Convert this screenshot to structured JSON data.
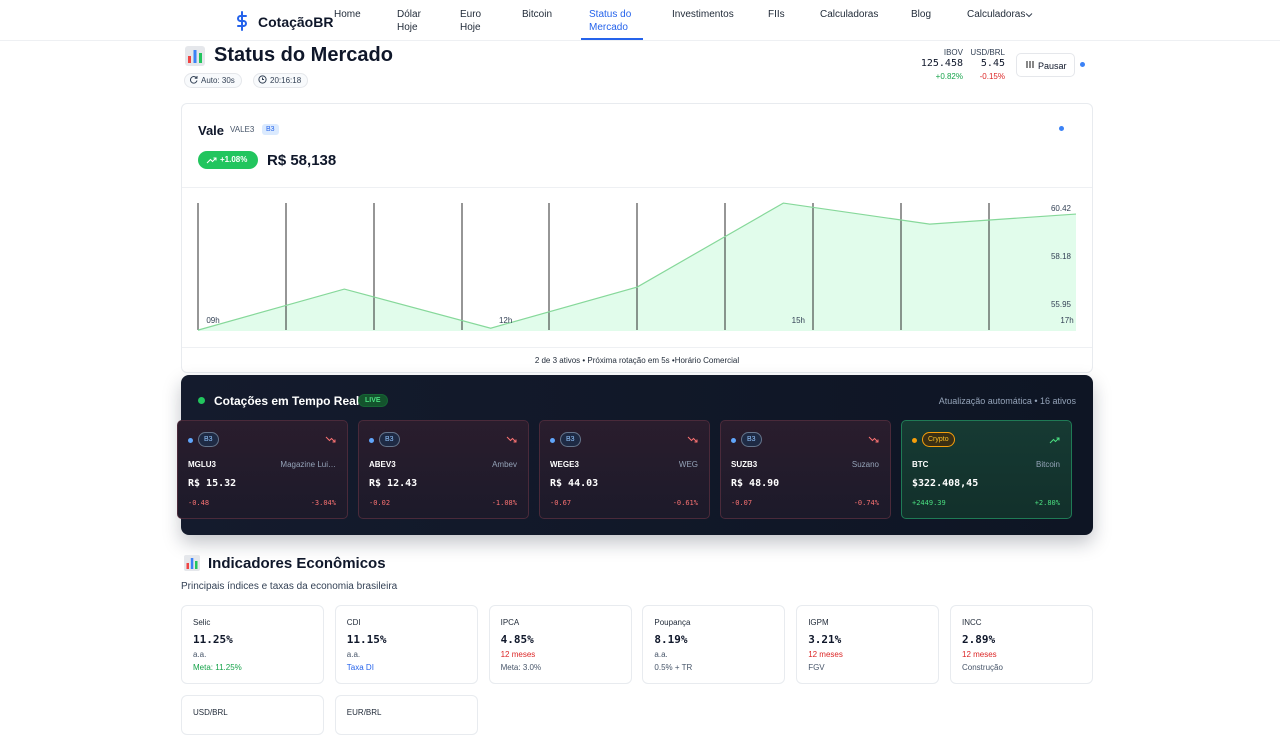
{
  "nav": {
    "brand": "CotaçãoBR",
    "items": [
      "Home",
      "Dólar Hoje",
      "Euro Hoje",
      "Bitcoin",
      "Status do Mercado",
      "Investimentos",
      "FIIs",
      "Calculadoras",
      "Blog",
      "Calculadoras"
    ]
  },
  "header": {
    "title": "Status do Mercado",
    "auto": "Auto: 30s",
    "time": "20:16:18",
    "tickers": [
      {
        "label": "IBOV",
        "value": "125.458",
        "change": "+0.82%"
      },
      {
        "label": "USD/BRL",
        "value": "5.45",
        "change": "-0.15%"
      }
    ],
    "pause": "Pausar"
  },
  "asset": {
    "name": "Vale",
    "ticker": "VALE3",
    "exchange": "B3",
    "change": "+1.08%",
    "price": "R$ 58,138",
    "footer": "2 de 3 ativos • Próxima rotação em 5s •Horário Comercial"
  },
  "price_chart": {
    "type": "area",
    "categories": [
      "09h",
      null,
      "12h",
      null,
      "15h",
      null,
      "17h"
    ],
    "values": [
      54.74,
      56.65,
      54.83,
      56.74,
      60.65,
      59.67,
      60.14
    ],
    "ylim": [
      54.7,
      60.7
    ],
    "yticks": [
      55.95,
      58.18,
      60.42
    ],
    "color": "#86d89a"
  },
  "live": {
    "title": "Cotações em Tempo Real",
    "badge": "LIVE",
    "status": "Atualização automática • 16 ativos",
    "cards": [
      {
        "exchange": "B3",
        "ticker": "MGLU3",
        "name": "Magazine Lui…",
        "price": "R$ 15.32",
        "change": "-0.48",
        "change_pct": "-3.04%"
      },
      {
        "exchange": "B3",
        "ticker": "ABEV3",
        "name": "Ambev",
        "price": "R$ 12.43",
        "change": "-0.02",
        "change_pct": "-1.08%"
      },
      {
        "exchange": "B3",
        "ticker": "WEGE3",
        "name": "WEG",
        "price": "R$ 44.03",
        "change": "-0.67",
        "change_pct": "-0.61%"
      },
      {
        "exchange": "B3",
        "ticker": "SUZB3",
        "name": "Suzano",
        "price": "R$ 48.90",
        "change": "-0.07",
        "change_pct": "-0.74%"
      },
      {
        "exchange": "Crypto",
        "ticker": "BTC",
        "name": "Bitcoin",
        "price": "$322.408,45",
        "change": "+2449.39",
        "change_pct": "+2.80%"
      }
    ]
  },
  "indicators": {
    "title": "Indicadores Econômicos",
    "subtitle": "Principais índices e taxas da economia brasileira",
    "cards": [
      {
        "label": "Selic",
        "value": "11.25%",
        "unit": "a.a.",
        "note": "Meta: 11.25%",
        "unit_color": "#475569",
        "note_color": "#16a34a"
      },
      {
        "label": "CDI",
        "value": "11.15%",
        "unit": "a.a.",
        "note": "Taxa DI",
        "unit_color": "#475569",
        "note_color": "#2563eb"
      },
      {
        "label": "IPCA",
        "value": "4.85%",
        "unit": "12 meses",
        "note": "Meta: 3.0%",
        "unit_color": "#dc2626",
        "note_color": "#475569"
      },
      {
        "label": "Poupança",
        "value": "8.19%",
        "unit": "a.a.",
        "note": "0.5% + TR",
        "unit_color": "#475569",
        "note_color": "#475569"
      },
      {
        "label": "IGPM",
        "value": "3.21%",
        "unit": "12 meses",
        "note": "FGV",
        "unit_color": "#dc2626",
        "note_color": "#475569"
      },
      {
        "label": "INCC",
        "value": "2.89%",
        "unit": "12 meses",
        "note": "Construção",
        "unit_color": "#dc2626",
        "note_color": "#475569"
      },
      {
        "label": "USD/BRL"
      },
      {
        "label": "EUR/BRL"
      }
    ]
  }
}
